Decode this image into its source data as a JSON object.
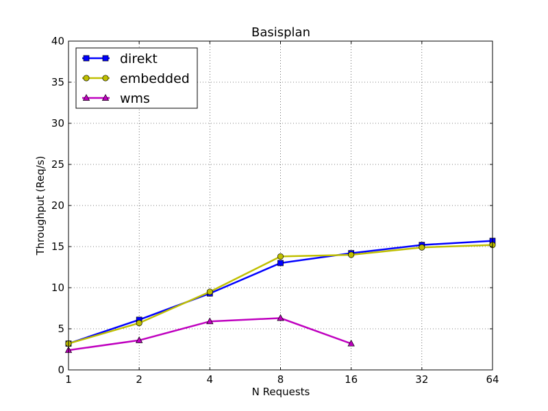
{
  "chart_data": {
    "type": "line",
    "title": "Basisplan",
    "xlabel": "N Requests",
    "ylabel": "Throughput (Req/s)",
    "x_scale": "log2",
    "x": [
      1,
      2,
      4,
      8,
      16,
      32,
      64
    ],
    "x_tick_labels": [
      "1",
      "2",
      "4",
      "8",
      "16",
      "32",
      "64"
    ],
    "xlim": [
      1,
      64
    ],
    "ylim": [
      0,
      40
    ],
    "y_ticks": [
      0,
      5,
      10,
      15,
      20,
      25,
      30,
      35,
      40
    ],
    "y_tick_labels": [
      "0",
      "5",
      "10",
      "15",
      "20",
      "25",
      "30",
      "35",
      "40"
    ],
    "grid": true,
    "legend_position": "top-left",
    "series": [
      {
        "name": "direkt",
        "color": "#0000ff",
        "marker": "square",
        "points": [
          [
            1,
            3.2
          ],
          [
            2,
            6.1
          ],
          [
            4,
            9.3
          ],
          [
            8,
            13.0
          ],
          [
            16,
            14.2
          ],
          [
            32,
            15.2
          ],
          [
            64,
            15.7
          ]
        ]
      },
      {
        "name": "embedded",
        "color": "#bfbf00",
        "marker": "circle",
        "points": [
          [
            1,
            3.2
          ],
          [
            2,
            5.7
          ],
          [
            4,
            9.5
          ],
          [
            8,
            13.8
          ],
          [
            16,
            14.0
          ],
          [
            32,
            14.9
          ],
          [
            64,
            15.2
          ]
        ]
      },
      {
        "name": "wms",
        "color": "#bf00bf",
        "marker": "triangle",
        "points": [
          [
            1,
            2.4
          ],
          [
            2,
            3.6
          ],
          [
            4,
            5.9
          ],
          [
            8,
            6.3
          ],
          [
            16,
            3.2
          ]
        ]
      }
    ]
  }
}
